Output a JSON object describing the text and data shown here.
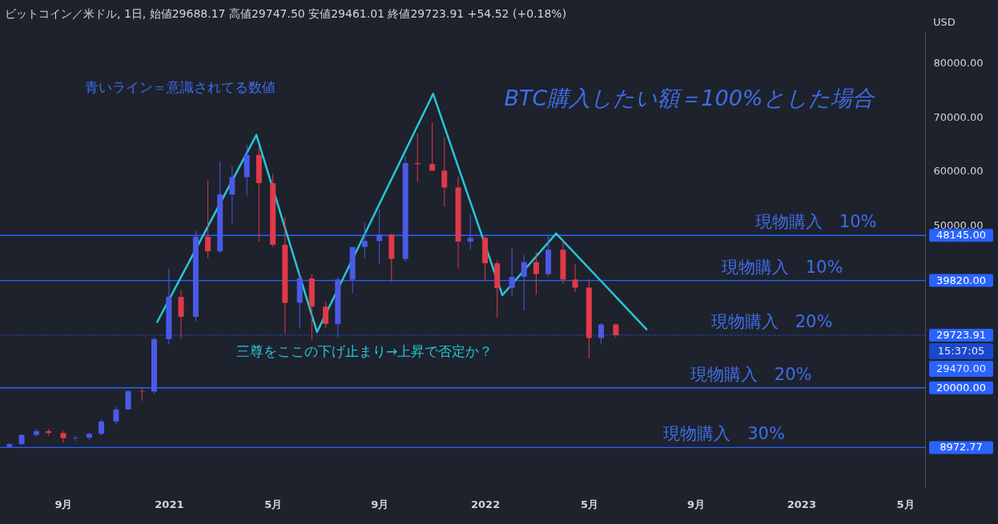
{
  "chart_data": {
    "type": "candlestick",
    "title": "ビットコイン／米ドル, 1日, 始値29688.17 高値29747.50 安値29461.01 終値29723.91 +54.52 (+0.18%)",
    "ylabel": "USD",
    "x": [
      "2020-07-01",
      "2020-07-15",
      "2020-08-01",
      "2020-08-15",
      "2020-09-01",
      "2020-09-15",
      "2020-10-01",
      "2020-10-15",
      "2020-11-01",
      "2020-11-15",
      "2020-12-01",
      "2020-12-15",
      "2021-01-01",
      "2021-01-15",
      "2021-02-01",
      "2021-02-15",
      "2021-03-01",
      "2021-03-15",
      "2021-04-01",
      "2021-04-15",
      "2021-05-01",
      "2021-05-15",
      "2021-06-01",
      "2021-06-15",
      "2021-07-01",
      "2021-07-15",
      "2021-08-01",
      "2021-08-15",
      "2021-09-01",
      "2021-09-15",
      "2021-10-01",
      "2021-10-15",
      "2021-11-01",
      "2021-11-15",
      "2021-12-01",
      "2021-12-15",
      "2022-01-01",
      "2022-01-15",
      "2022-02-01",
      "2022-02-15",
      "2022-03-01",
      "2022-03-15",
      "2022-04-01",
      "2022-04-15",
      "2022-05-01",
      "2022-05-15",
      "2022-06-01"
    ],
    "ohlc": [
      [
        9100,
        9800,
        9000,
        9600
      ],
      [
        9600,
        11400,
        9400,
        11300
      ],
      [
        11300,
        12400,
        11000,
        12000
      ],
      [
        12000,
        12400,
        11200,
        11650
      ],
      [
        11650,
        12050,
        9900,
        10700
      ],
      [
        10700,
        11100,
        10200,
        10800
      ],
      [
        10800,
        11700,
        10400,
        11500
      ],
      [
        11500,
        14100,
        11200,
        13800
      ],
      [
        13800,
        16500,
        13200,
        16000
      ],
      [
        16000,
        19500,
        15900,
        19400
      ],
      [
        19400,
        19900,
        17600,
        19300
      ],
      [
        19300,
        29300,
        19000,
        29000
      ],
      [
        29000,
        42000,
        28000,
        36800
      ],
      [
        36800,
        38000,
        29000,
        33100
      ],
      [
        33100,
        49000,
        32300,
        47900
      ],
      [
        47900,
        58300,
        44000,
        45200
      ],
      [
        45200,
        61800,
        44900,
        55700
      ],
      [
        55700,
        61000,
        50300,
        58900
      ],
      [
        58900,
        64900,
        55500,
        63000
      ],
      [
        63000,
        64500,
        47000,
        57800
      ],
      [
        57800,
        59500,
        46000,
        46400
      ],
      [
        46400,
        51500,
        30000,
        35700
      ],
      [
        35700,
        41300,
        31000,
        40200
      ],
      [
        40200,
        41000,
        28800,
        35000
      ],
      [
        35000,
        36000,
        31000,
        31800
      ],
      [
        31800,
        40500,
        29300,
        40000
      ],
      [
        40000,
        46000,
        37500,
        46000
      ],
      [
        46000,
        50500,
        43900,
        47100
      ],
      [
        47100,
        52900,
        42800,
        48300
      ],
      [
        48300,
        48500,
        39600,
        43800
      ],
      [
        43800,
        62900,
        43300,
        61500
      ],
      [
        61500,
        67000,
        58000,
        61300
      ],
      [
        61300,
        69000,
        60000,
        60100
      ],
      [
        60100,
        66300,
        53500,
        57000
      ],
      [
        57000,
        59000,
        42000,
        47000
      ],
      [
        47000,
        52000,
        45500,
        47700
      ],
      [
        47700,
        47900,
        39700,
        43000
      ],
      [
        43000,
        43500,
        33000,
        38400
      ],
      [
        38400,
        45800,
        37000,
        40500
      ],
      [
        40500,
        44500,
        34300,
        43200
      ],
      [
        43200,
        45000,
        37200,
        41000
      ],
      [
        41000,
        48200,
        40500,
        45500
      ],
      [
        45500,
        47200,
        39200,
        40000
      ],
      [
        40000,
        42900,
        37700,
        38500
      ],
      [
        38500,
        40000,
        25400,
        29200
      ],
      [
        29200,
        31900,
        28000,
        31700
      ],
      [
        31700,
        31900,
        29300,
        29723.91
      ]
    ],
    "series": [
      {
        "type": "line",
        "color": "#26c6da",
        "x": [
          "2020-12-18",
          "2021-04-12",
          "2021-06-21",
          "2021-11-02",
          "2022-01-21",
          "2022-03-24",
          "2022-07-07"
        ],
        "values": [
          32000,
          66700,
          30300,
          74300,
          37100,
          48500,
          30700
        ]
      }
    ],
    "xlim": [
      "2020-06-20",
      "2023-05-24"
    ],
    "xticks": [
      {
        "value": "2020-09-01",
        "label": "9月"
      },
      {
        "value": "2021-01-01",
        "label": "2021"
      },
      {
        "value": "2021-05-01",
        "label": "5月"
      },
      {
        "value": "2021-09-01",
        "label": "9月"
      },
      {
        "value": "2022-01-01",
        "label": "2022"
      },
      {
        "value": "2022-05-01",
        "label": "5月"
      },
      {
        "value": "2022-09-01",
        "label": "9月"
      },
      {
        "value": "2023-01-01",
        "label": "2023"
      },
      {
        "value": "2023-05-01",
        "label": "5月"
      }
    ],
    "ylim": [
      1500,
      85700
    ],
    "yticks": [
      {
        "value": 50000,
        "label": "50000.00"
      },
      {
        "value": 60000,
        "label": "60000.00"
      },
      {
        "value": 70000,
        "label": "70000.00"
      },
      {
        "value": 80000,
        "label": "80000.00"
      }
    ],
    "ref_lines": [
      {
        "axis": "y",
        "value": 48145,
        "label": "48145.00",
        "color": "#2962ff"
      },
      {
        "axis": "y",
        "value": 39820,
        "label": "39820.00",
        "color": "#2962ff"
      },
      {
        "axis": "y",
        "value": 29723.91,
        "label": "29723.91",
        "color": "#2962ff",
        "line_style": "dotted"
      },
      {
        "axis": "y",
        "value": 20000,
        "label": "20000.00",
        "color": "#2962ff"
      },
      {
        "axis": "y",
        "value": 8972.77,
        "label": "8972.77",
        "color": "#2962ff"
      }
    ],
    "annotations": [
      "15:37:05",
      "29470.00",
      "青いライン＝意識されてる数値",
      "BTC購入したい額＝100%とした場合",
      {
        "text": "現物購入　10%",
        "x": "2023-01-18",
        "y": 48145
      },
      {
        "text": "現物購入　10%",
        "x": "2022-12-10",
        "y": 39820
      },
      {
        "text": "現物購入　20%",
        "x": "2022-11-28",
        "y": 29723.91
      },
      {
        "text": "現物購入　20%",
        "x": "2022-11-04",
        "y": 20000
      },
      {
        "text": "現物購入　30%",
        "x": "2022-10-04",
        "y": 8972.77
      },
      "三尊をここの下げ止まり→上昇で否定か？"
    ]
  }
}
